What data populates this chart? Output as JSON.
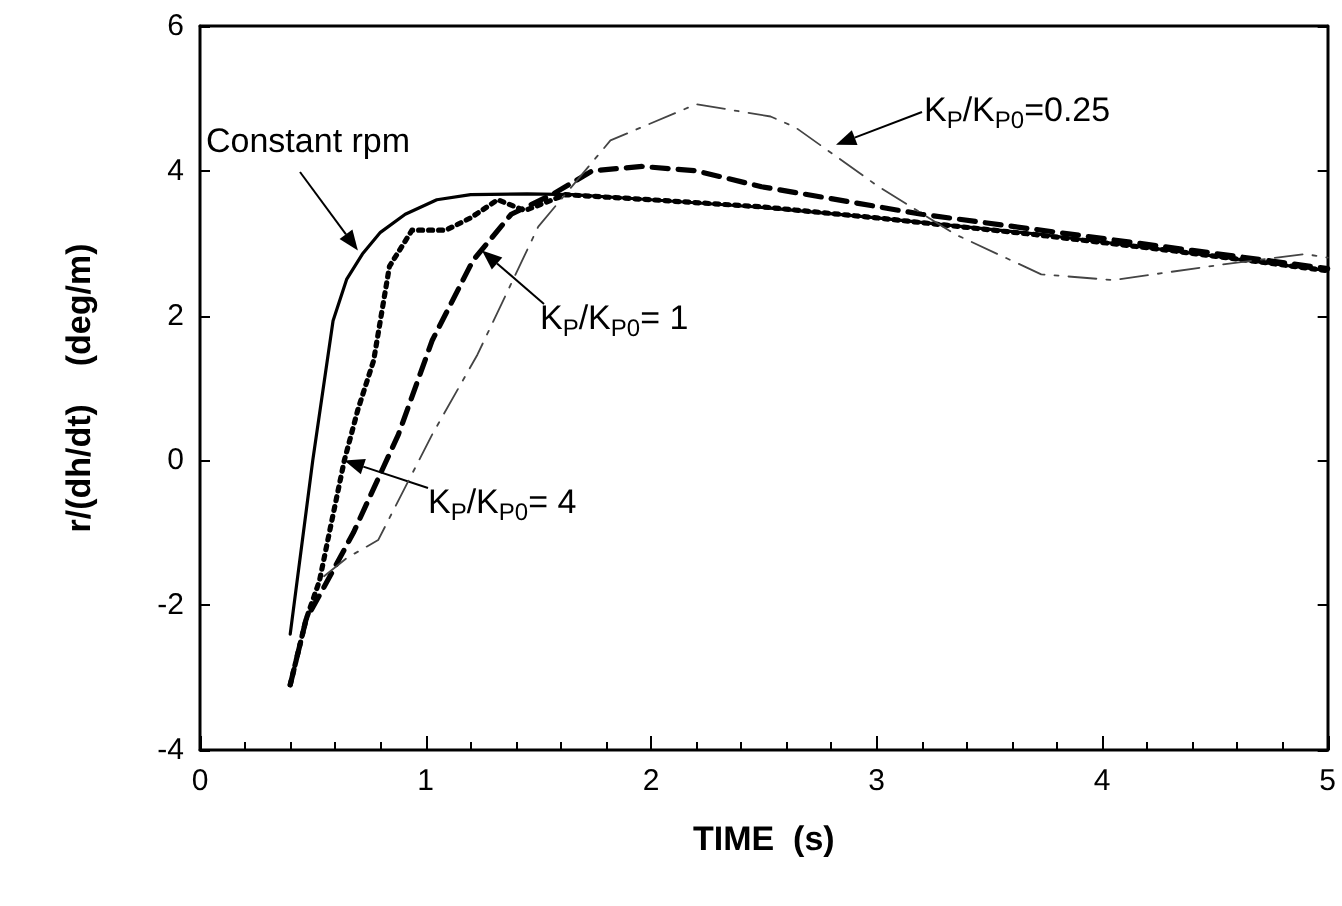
{
  "chart_data": {
    "type": "line",
    "xlabel": "TIME  (s)",
    "ylabel": "r/(dh/dt)    (deg/m)",
    "xlim": [
      0,
      5
    ],
    "xticks": [
      0,
      1,
      2,
      3,
      4,
      5
    ],
    "ylim": [
      -4,
      6
    ],
    "yticks": [
      -4,
      -2,
      0,
      2,
      4,
      6
    ],
    "grid": false,
    "marker": "none",
    "series": [
      {
        "color": "#000000",
        "line_style": "solid",
        "x": [
          0.4,
          0.5,
          0.59,
          0.65,
          0.72,
          0.8,
          0.91,
          1.05,
          1.2,
          1.45,
          1.65,
          2.0,
          2.47,
          3.0,
          3.73,
          4.3,
          5.0
        ],
        "values": [
          -2.4,
          0.0,
          1.93,
          2.5,
          2.85,
          3.15,
          3.4,
          3.6,
          3.67,
          3.68,
          3.67,
          3.6,
          3.5,
          3.35,
          3.12,
          2.9,
          2.62
        ]
      },
      {
        "color": "#000000",
        "line_style": "dotted",
        "x": [
          0.4,
          0.47,
          0.53,
          0.58,
          0.64,
          0.7,
          0.77,
          0.84,
          0.94,
          1.09,
          1.2,
          1.32,
          1.44,
          1.62,
          2.0,
          2.5,
          3.0,
          3.7,
          4.3,
          5.0
        ],
        "values": [
          -3.1,
          -2.2,
          -1.66,
          -0.9,
          0.0,
          0.7,
          1.38,
          2.68,
          3.18,
          3.18,
          3.35,
          3.6,
          3.45,
          3.67,
          3.6,
          3.5,
          3.35,
          3.12,
          2.9,
          2.62
        ]
      },
      {
        "color": "#000000",
        "line_style": "dashed",
        "x": [
          0.4,
          0.47,
          0.55,
          0.68,
          0.88,
          1.03,
          1.21,
          1.38,
          1.56,
          1.74,
          1.96,
          2.2,
          2.49,
          3.2,
          3.8,
          4.4,
          5.0
        ],
        "values": [
          -3.1,
          -2.2,
          -1.75,
          -1.0,
          0.36,
          1.66,
          2.76,
          3.4,
          3.67,
          4.0,
          4.06,
          4.0,
          3.78,
          3.4,
          3.15,
          2.9,
          2.65
        ]
      },
      {
        "color": "#444444",
        "line_style": "dashdot",
        "x": [
          0.55,
          0.65,
          0.79,
          1.03,
          1.23,
          1.5,
          1.82,
          2.2,
          2.53,
          2.64,
          3.0,
          3.35,
          3.73,
          4.05,
          4.52,
          4.9,
          5.0
        ],
        "values": [
          -1.6,
          -1.35,
          -1.1,
          0.36,
          1.46,
          3.23,
          4.42,
          4.92,
          4.75,
          4.6,
          3.8,
          3.12,
          2.57,
          2.49,
          2.7,
          2.85,
          2.8
        ]
      }
    ],
    "annotations": [
      {
        "text": "Constant rpm",
        "x": 0.7,
        "y": 2.9
      },
      {
        "text": "K$_{P}$/K$_{P0}$= 4",
        "x": 0.64,
        "y": 0
      },
      {
        "text": "K$_{P}$/K$_{P0}$= 1",
        "x": 1.25,
        "y": 2.9
      },
      {
        "text": "K$_{P}$/K$_{P0}$=0.25",
        "x": 2.82,
        "y": 4.36
      }
    ]
  }
}
